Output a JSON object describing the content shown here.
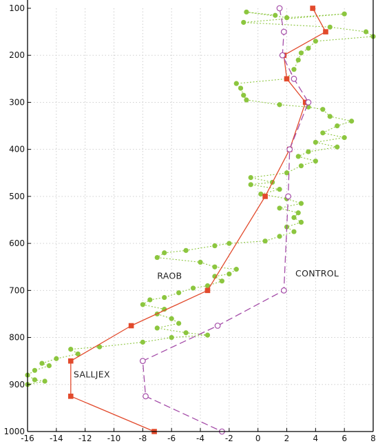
{
  "chart_data": {
    "type": "line",
    "title": "",
    "xlabel": "",
    "ylabel": "",
    "xlim": [
      -16,
      8
    ],
    "ylim": [
      1000,
      100
    ],
    "x_ticks": [
      -16,
      -14,
      -12,
      -10,
      -8,
      -6,
      -4,
      -2,
      0,
      2,
      4,
      6,
      8
    ],
    "y_ticks": [
      100,
      200,
      300,
      400,
      500,
      600,
      700,
      800,
      900,
      1000
    ],
    "grid": true,
    "annotations": [
      {
        "text": "RAOB",
        "x": -7.0,
        "y": 675
      },
      {
        "text": "CONTROL",
        "x": 2.6,
        "y": 670
      },
      {
        "text": "SALLJEX",
        "x": -12.8,
        "y": 885
      }
    ],
    "series": [
      {
        "name": "RAOB",
        "color": "#8cc63f",
        "style": "dotted",
        "marker": "filled-circle",
        "points": [
          [
            1.2,
            115
          ],
          [
            -0.8,
            108
          ],
          [
            2.0,
            120
          ],
          [
            6.0,
            112
          ],
          [
            -1.0,
            130
          ],
          [
            5.0,
            140
          ],
          [
            7.5,
            150
          ],
          [
            8.0,
            160
          ],
          [
            4.0,
            170
          ],
          [
            3.5,
            185
          ],
          [
            3.0,
            195
          ],
          [
            2.8,
            210
          ],
          [
            2.5,
            230
          ],
          [
            2.0,
            250
          ],
          [
            -1.5,
            260
          ],
          [
            -1.2,
            270
          ],
          [
            -1.0,
            285
          ],
          [
            -0.8,
            295
          ],
          [
            1.5,
            305
          ],
          [
            3.5,
            310
          ],
          [
            4.5,
            315
          ],
          [
            5.0,
            330
          ],
          [
            6.5,
            340
          ],
          [
            5.5,
            350
          ],
          [
            4.5,
            365
          ],
          [
            6.0,
            375
          ],
          [
            4.0,
            385
          ],
          [
            5.5,
            395
          ],
          [
            3.5,
            405
          ],
          [
            2.8,
            415
          ],
          [
            4.0,
            425
          ],
          [
            3.0,
            435
          ],
          [
            2.0,
            450
          ],
          [
            -0.5,
            460
          ],
          [
            1.0,
            470
          ],
          [
            -0.5,
            475
          ],
          [
            1.5,
            485
          ],
          [
            0.2,
            495
          ],
          [
            2.0,
            505
          ],
          [
            3.0,
            515
          ],
          [
            1.5,
            525
          ],
          [
            2.8,
            535
          ],
          [
            2.5,
            545
          ],
          [
            3.0,
            555
          ],
          [
            2.0,
            565
          ],
          [
            2.5,
            575
          ],
          [
            1.5,
            585
          ],
          [
            0.5,
            595
          ],
          [
            -2.0,
            600
          ],
          [
            -3.0,
            605
          ],
          [
            -5.0,
            615
          ],
          [
            -6.5,
            620
          ],
          [
            -7.0,
            630
          ],
          [
            -4.0,
            640
          ],
          [
            -3.0,
            650
          ],
          [
            -1.5,
            655
          ],
          [
            -2.0,
            665
          ],
          [
            -3.0,
            670
          ],
          [
            -2.5,
            680
          ],
          [
            -3.5,
            690
          ],
          [
            -4.5,
            695
          ],
          [
            -5.5,
            705
          ],
          [
            -6.5,
            715
          ],
          [
            -7.5,
            720
          ],
          [
            -8.0,
            730
          ],
          [
            -6.5,
            740
          ],
          [
            -7.0,
            750
          ],
          [
            -6.0,
            760
          ],
          [
            -5.5,
            770
          ],
          [
            -7.0,
            780
          ],
          [
            -5.0,
            790
          ],
          [
            -3.5,
            795
          ],
          [
            -6.0,
            800
          ],
          [
            -8.0,
            810
          ],
          [
            -11.0,
            820
          ],
          [
            -13.0,
            825
          ],
          [
            -12.5,
            835
          ],
          [
            -14.0,
            845
          ],
          [
            -15.0,
            855
          ],
          [
            -14.5,
            860
          ],
          [
            -15.5,
            870
          ],
          [
            -16.0,
            880
          ],
          [
            -15.5,
            890
          ],
          [
            -14.8,
            893
          ],
          [
            -16.0,
            900
          ]
        ]
      },
      {
        "name": "SALLJEX",
        "color": "#e24a2c",
        "style": "solid",
        "marker": "filled-square",
        "points": [
          [
            3.8,
            100
          ],
          [
            4.7,
            150
          ],
          [
            1.8,
            200
          ],
          [
            2.0,
            250
          ],
          [
            3.3,
            300
          ],
          [
            2.2,
            400
          ],
          [
            0.5,
            500
          ],
          [
            -3.5,
            700
          ],
          [
            -8.8,
            775
          ],
          [
            -13.0,
            850
          ],
          [
            -13.0,
            925
          ],
          [
            -7.2,
            1000
          ]
        ]
      },
      {
        "name": "CONTROL",
        "color": "#a44ca8",
        "style": "dashed",
        "marker": "open-circle",
        "points": [
          [
            1.5,
            100
          ],
          [
            1.8,
            150
          ],
          [
            1.7,
            200
          ],
          [
            2.5,
            250
          ],
          [
            3.5,
            300
          ],
          [
            2.2,
            400
          ],
          [
            2.1,
            500
          ],
          [
            1.8,
            700
          ],
          [
            -2.8,
            775
          ],
          [
            -8.0,
            850
          ],
          [
            -7.8,
            925
          ],
          [
            -2.5,
            1000
          ]
        ]
      }
    ]
  }
}
